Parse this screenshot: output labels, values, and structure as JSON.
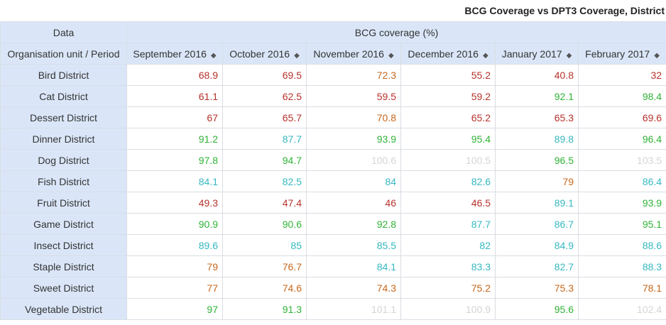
{
  "title": "BCG Coverage vs DPT3 Coverage, District",
  "header": {
    "data_label": "Data",
    "measure_label": "BCG coverage (%)",
    "row_dim_label": "Organisation unit / Period",
    "periods": [
      "September 2016",
      "October 2016",
      "November 2016",
      "December 2016",
      "January 2017",
      "February 2017"
    ]
  },
  "sort_glyph": "◆",
  "legend_colors": {
    "red": "#b7322c",
    "orange": "#c7671b",
    "green": "#2fb336",
    "teal": "#35b8c1",
    "grey": "#d5d5d5"
  },
  "rows": [
    {
      "unit": "Bird District",
      "cells": [
        {
          "v": "68.9",
          "c": "red"
        },
        {
          "v": "69.5",
          "c": "red"
        },
        {
          "v": "72.3",
          "c": "orange"
        },
        {
          "v": "55.2",
          "c": "red"
        },
        {
          "v": "40.8",
          "c": "red"
        },
        {
          "v": "32",
          "c": "red"
        }
      ]
    },
    {
      "unit": "Cat District",
      "cells": [
        {
          "v": "61.1",
          "c": "red"
        },
        {
          "v": "62.5",
          "c": "red"
        },
        {
          "v": "59.5",
          "c": "red"
        },
        {
          "v": "59.2",
          "c": "red"
        },
        {
          "v": "92.1",
          "c": "green"
        },
        {
          "v": "98.4",
          "c": "green"
        }
      ]
    },
    {
      "unit": "Dessert District",
      "cells": [
        {
          "v": "67",
          "c": "red"
        },
        {
          "v": "65.7",
          "c": "red"
        },
        {
          "v": "70.8",
          "c": "orange"
        },
        {
          "v": "65.2",
          "c": "red"
        },
        {
          "v": "65.3",
          "c": "red"
        },
        {
          "v": "69.6",
          "c": "red"
        }
      ]
    },
    {
      "unit": "Dinner District",
      "cells": [
        {
          "v": "91.2",
          "c": "green"
        },
        {
          "v": "87.7",
          "c": "teal"
        },
        {
          "v": "93.9",
          "c": "green"
        },
        {
          "v": "95.4",
          "c": "green"
        },
        {
          "v": "89.8",
          "c": "teal"
        },
        {
          "v": "96.4",
          "c": "green"
        }
      ]
    },
    {
      "unit": "Dog District",
      "cells": [
        {
          "v": "97.8",
          "c": "green"
        },
        {
          "v": "94.7",
          "c": "green"
        },
        {
          "v": "100.6",
          "c": "grey"
        },
        {
          "v": "100.5",
          "c": "grey"
        },
        {
          "v": "96.5",
          "c": "green"
        },
        {
          "v": "103.5",
          "c": "grey"
        }
      ]
    },
    {
      "unit": "Fish District",
      "cells": [
        {
          "v": "84.1",
          "c": "teal"
        },
        {
          "v": "82.5",
          "c": "teal"
        },
        {
          "v": "84",
          "c": "teal"
        },
        {
          "v": "82.6",
          "c": "teal"
        },
        {
          "v": "79",
          "c": "orange"
        },
        {
          "v": "86.4",
          "c": "teal"
        }
      ]
    },
    {
      "unit": "Fruit District",
      "cells": [
        {
          "v": "49.3",
          "c": "red"
        },
        {
          "v": "47.4",
          "c": "red"
        },
        {
          "v": "46",
          "c": "red"
        },
        {
          "v": "46.5",
          "c": "red"
        },
        {
          "v": "89.1",
          "c": "teal"
        },
        {
          "v": "93.9",
          "c": "green"
        }
      ]
    },
    {
      "unit": "Game District",
      "cells": [
        {
          "v": "90.9",
          "c": "green"
        },
        {
          "v": "90.6",
          "c": "green"
        },
        {
          "v": "92.8",
          "c": "green"
        },
        {
          "v": "87.7",
          "c": "teal"
        },
        {
          "v": "86.7",
          "c": "teal"
        },
        {
          "v": "95.1",
          "c": "green"
        }
      ]
    },
    {
      "unit": "Insect District",
      "cells": [
        {
          "v": "89.6",
          "c": "teal"
        },
        {
          "v": "85",
          "c": "teal"
        },
        {
          "v": "85.5",
          "c": "teal"
        },
        {
          "v": "82",
          "c": "teal"
        },
        {
          "v": "84.9",
          "c": "teal"
        },
        {
          "v": "88.6",
          "c": "teal"
        }
      ]
    },
    {
      "unit": "Staple District",
      "cells": [
        {
          "v": "79",
          "c": "orange"
        },
        {
          "v": "76.7",
          "c": "orange"
        },
        {
          "v": "84.1",
          "c": "teal"
        },
        {
          "v": "83.3",
          "c": "teal"
        },
        {
          "v": "82.7",
          "c": "teal"
        },
        {
          "v": "88.3",
          "c": "teal"
        }
      ]
    },
    {
      "unit": "Sweet District",
      "cells": [
        {
          "v": "77",
          "c": "orange"
        },
        {
          "v": "74.6",
          "c": "orange"
        },
        {
          "v": "74.3",
          "c": "orange"
        },
        {
          "v": "75.2",
          "c": "orange"
        },
        {
          "v": "75.3",
          "c": "orange"
        },
        {
          "v": "78.1",
          "c": "orange"
        }
      ]
    },
    {
      "unit": "Vegetable District",
      "cells": [
        {
          "v": "97",
          "c": "green"
        },
        {
          "v": "91.3",
          "c": "green"
        },
        {
          "v": "101.1",
          "c": "grey"
        },
        {
          "v": "100.9",
          "c": "grey"
        },
        {
          "v": "95.6",
          "c": "green"
        },
        {
          "v": "102.4",
          "c": "grey"
        }
      ]
    }
  ]
}
